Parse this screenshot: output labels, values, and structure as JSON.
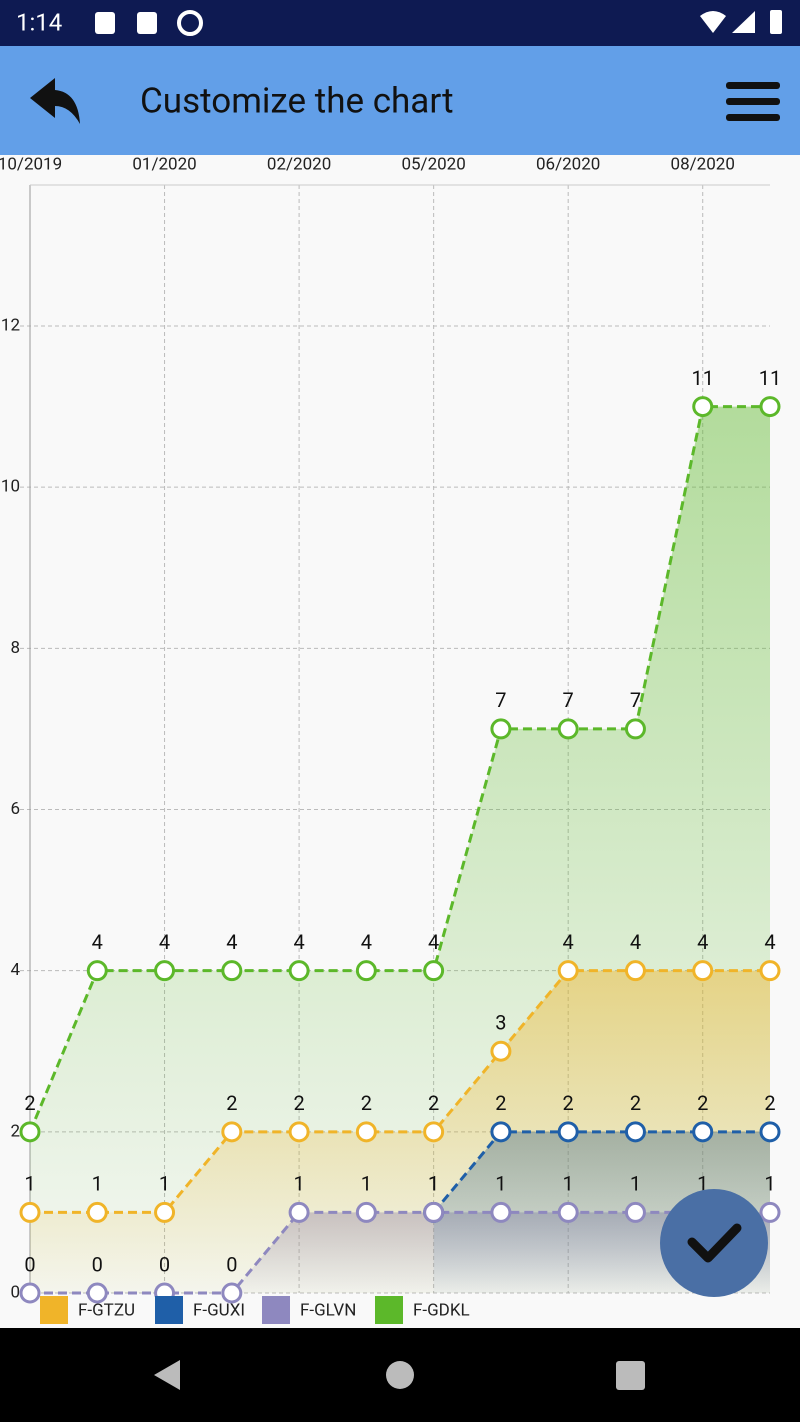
{
  "app": {
    "status_time": "1:14",
    "title": "Customize the chart"
  },
  "chart_data": {
    "type": "line",
    "categories": [
      "10/2019",
      null,
      "01/2020",
      null,
      "02/2020",
      null,
      "05/2020",
      null,
      "06/2020",
      null,
      "08/2020",
      null
    ],
    "series": [
      {
        "name": "F-GTZU",
        "color": "#f0b429",
        "values": [
          1,
          1,
          1,
          2,
          2,
          2,
          2,
          3,
          4,
          4,
          4,
          4
        ]
      },
      {
        "name": "F-GUXI",
        "color": "#1f5fa8",
        "values": [
          null,
          null,
          null,
          null,
          null,
          null,
          1,
          2,
          2,
          2,
          2,
          2
        ]
      },
      {
        "name": "F-GLVN",
        "color": "#8e88bf",
        "values": [
          0,
          0,
          0,
          0,
          1,
          1,
          1,
          1,
          1,
          1,
          1,
          1
        ]
      },
      {
        "name": "F-GDKL",
        "color": "#5cb82a",
        "values": [
          2,
          4,
          4,
          4,
          4,
          4,
          4,
          7,
          7,
          7,
          11,
          11
        ]
      }
    ],
    "ylim": [
      0,
      13.75
    ],
    "yticks": [
      0,
      2,
      4,
      6,
      8,
      10,
      12
    ],
    "grid": true,
    "legend": "bottom-left"
  }
}
